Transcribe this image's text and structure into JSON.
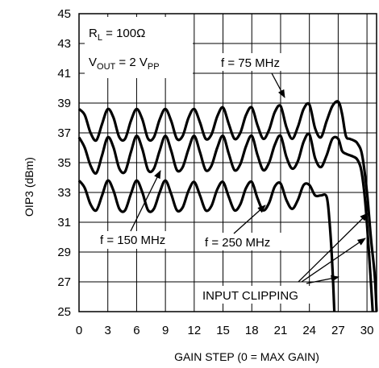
{
  "chart_data": {
    "type": "line",
    "xlabel": "GAIN STEP (0 = MAX GAIN)",
    "ylabel": "OIP3 (dBm)",
    "xlim": [
      0,
      31
    ],
    "ylim": [
      25,
      45
    ],
    "xticks": [
      0,
      3,
      6,
      9,
      12,
      15,
      18,
      21,
      24,
      27,
      30
    ],
    "yticks": [
      25,
      27,
      29,
      31,
      33,
      35,
      37,
      39,
      41,
      43,
      45
    ],
    "grid": true,
    "conditions": {
      "rl": {
        "main": "R",
        "sub": "L",
        "rest": " = 100Ω"
      },
      "vout": {
        "main": "V",
        "sub": "OUT",
        "mid": " = 2 V",
        "sub2": "PP"
      }
    },
    "series": [
      {
        "name": "f = 75 MHz",
        "x": [
          0,
          0.6,
          1.2,
          1.8,
          2.4,
          3.0,
          3.6,
          4.2,
          4.8,
          5.4,
          6.0,
          6.6,
          7.2,
          7.8,
          8.4,
          9.0,
          9.6,
          10.2,
          10.8,
          11.4,
          12.0,
          12.6,
          13.2,
          13.8,
          14.4,
          15.0,
          15.6,
          16.2,
          16.8,
          17.4,
          18.0,
          18.6,
          19.2,
          19.8,
          20.4,
          21.0,
          21.6,
          22.2,
          22.8,
          23.4,
          24.0,
          24.6,
          25.2,
          25.8,
          26.4,
          27.0,
          27.4,
          27.8,
          28.2,
          28.6,
          29.0,
          29.5,
          30.0,
          30.4,
          30.8,
          31.0
        ],
        "y": [
          38.6,
          38.2,
          37.0,
          36.5,
          37.6,
          38.6,
          38.0,
          36.7,
          36.6,
          37.8,
          38.6,
          37.9,
          36.6,
          36.7,
          37.9,
          38.6,
          37.8,
          36.6,
          36.8,
          38.0,
          38.6,
          37.7,
          36.6,
          36.9,
          38.1,
          38.7,
          37.6,
          36.6,
          37.0,
          38.2,
          38.7,
          37.5,
          36.6,
          37.2,
          38.4,
          38.8,
          37.4,
          36.6,
          37.4,
          38.6,
          38.9,
          37.3,
          36.7,
          37.8,
          38.8,
          39.1,
          38.3,
          36.8,
          36.6,
          36.5,
          36.3,
          35.5,
          33.0,
          30.0,
          27.5,
          25.0
        ]
      },
      {
        "name": "f = 150 MHz",
        "x": [
          0,
          0.6,
          1.2,
          1.8,
          2.4,
          3.0,
          3.6,
          4.2,
          4.8,
          5.4,
          6.0,
          6.6,
          7.2,
          7.8,
          8.4,
          9.0,
          9.6,
          10.2,
          10.8,
          11.4,
          12.0,
          12.6,
          13.2,
          13.8,
          14.4,
          15.0,
          15.6,
          16.2,
          16.8,
          17.4,
          18.0,
          18.6,
          19.2,
          19.8,
          20.4,
          21.0,
          21.6,
          22.2,
          22.8,
          23.4,
          24.0,
          24.6,
          25.2,
          25.8,
          26.4,
          27.0,
          27.4,
          27.8,
          28.2,
          28.6,
          29.0,
          29.4,
          29.8,
          30.2,
          30.6
        ],
        "y": [
          36.7,
          36.0,
          34.8,
          34.3,
          35.5,
          36.7,
          36.0,
          34.6,
          34.4,
          35.7,
          36.8,
          35.9,
          34.5,
          34.6,
          35.8,
          36.8,
          35.8,
          34.5,
          34.7,
          35.9,
          36.8,
          35.7,
          34.5,
          34.8,
          36.0,
          36.8,
          35.6,
          34.5,
          34.9,
          36.1,
          36.8,
          35.5,
          34.5,
          35.0,
          36.2,
          36.8,
          35.4,
          34.6,
          35.1,
          36.4,
          36.9,
          35.3,
          34.7,
          35.5,
          36.6,
          36.6,
          35.8,
          35.6,
          35.5,
          35.4,
          35.2,
          34.5,
          32.5,
          29.0,
          25.0
        ]
      },
      {
        "name": "f = 250 MHz",
        "x": [
          0,
          0.6,
          1.2,
          1.8,
          2.4,
          3.0,
          3.6,
          4.2,
          4.8,
          5.4,
          6.0,
          6.6,
          7.2,
          7.8,
          8.4,
          9.0,
          9.6,
          10.2,
          10.8,
          11.4,
          12.0,
          12.6,
          13.2,
          13.8,
          14.4,
          15.0,
          15.6,
          16.2,
          16.8,
          17.4,
          18.0,
          18.6,
          19.2,
          19.8,
          20.4,
          21.0,
          21.6,
          22.2,
          22.8,
          23.4,
          24.0,
          24.6,
          25.2,
          25.8,
          26.1,
          26.4,
          26.6
        ],
        "y": [
          33.8,
          33.3,
          32.2,
          31.8,
          32.8,
          33.8,
          33.1,
          31.9,
          31.8,
          32.9,
          33.8,
          33.0,
          31.8,
          31.9,
          33.0,
          33.8,
          32.9,
          31.8,
          32.0,
          33.1,
          33.7,
          32.8,
          31.8,
          32.1,
          33.2,
          33.7,
          32.7,
          31.8,
          32.2,
          33.3,
          33.7,
          32.6,
          31.8,
          32.3,
          33.4,
          33.6,
          32.5,
          31.9,
          32.5,
          33.5,
          33.5,
          32.8,
          32.8,
          32.7,
          31.0,
          28.0,
          25.0
        ]
      }
    ],
    "annotations": {
      "f75": "f = 75 MHz",
      "f150": "f = 150 MHz",
      "f250": "f = 250 MHz",
      "clipping": "INPUT CLIPPING"
    }
  }
}
